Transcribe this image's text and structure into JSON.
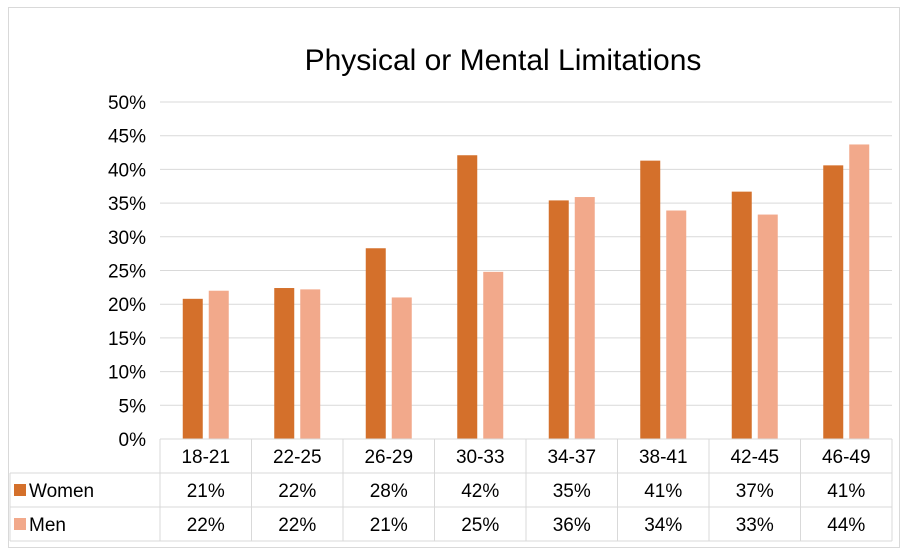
{
  "chart_data": {
    "type": "bar",
    "title": "Physical or Mental Limitations",
    "categories": [
      "18-21",
      "22-25",
      "26-29",
      "30-33",
      "34-37",
      "38-41",
      "42-45",
      "46-49"
    ],
    "series": [
      {
        "name": "Women",
        "color": "#d4702b",
        "values": [
          20.8,
          22.4,
          28.3,
          42.1,
          35.4,
          41.3,
          36.7,
          40.6
        ],
        "labels": [
          "21%",
          "22%",
          "28%",
          "42%",
          "35%",
          "41%",
          "37%",
          "41%"
        ]
      },
      {
        "name": "Men",
        "color": "#f2a98b",
        "values": [
          22.0,
          22.2,
          21.0,
          24.8,
          35.9,
          33.9,
          33.3,
          43.7
        ],
        "labels": [
          "22%",
          "22%",
          "21%",
          "25%",
          "36%",
          "34%",
          "33%",
          "44%"
        ]
      }
    ],
    "yticks": [
      "0%",
      "5%",
      "10%",
      "15%",
      "20%",
      "25%",
      "30%",
      "35%",
      "40%",
      "45%",
      "50%"
    ],
    "ylim": [
      0,
      50
    ],
    "grid": true,
    "legend": "data-table",
    "gridline_color": "#d9d9d9"
  }
}
